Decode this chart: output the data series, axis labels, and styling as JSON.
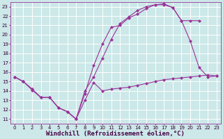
{
  "series": [
    {
      "x": [
        0,
        1,
        2,
        3,
        4,
        5,
        6,
        7,
        8,
        9,
        10,
        11,
        12,
        13,
        14,
        15,
        16,
        17,
        18,
        19,
        20,
        21,
        22,
        23
      ],
      "y": [
        15.5,
        15.0,
        14.1,
        13.3,
        13.3,
        12.2,
        11.8,
        11.0,
        13.0,
        14.9,
        14.0,
        14.2,
        14.3,
        14.4,
        14.6,
        14.8,
        15.0,
        15.2,
        15.3,
        15.4,
        15.5,
        15.6,
        15.7,
        15.6
      ]
    },
    {
      "x": [
        0,
        1,
        2,
        3,
        4,
        5,
        6,
        7,
        8,
        9,
        10,
        11,
        12,
        13,
        14,
        15,
        16,
        17,
        18,
        19,
        20,
        21,
        22,
        23
      ],
      "y": [
        15.5,
        15.0,
        14.2,
        13.3,
        13.3,
        12.2,
        11.8,
        11.0,
        13.7,
        16.7,
        19.0,
        20.8,
        21.0,
        21.8,
        22.2,
        22.8,
        23.2,
        23.3,
        22.9,
        21.5,
        19.3,
        16.5,
        15.5,
        15.6
      ]
    },
    {
      "x": [
        0,
        1,
        2,
        3,
        4,
        5,
        6,
        7,
        8,
        9,
        10,
        11,
        12,
        13,
        14,
        15,
        16,
        17,
        18,
        19,
        20,
        21
      ],
      "y": [
        15.5,
        15.0,
        14.2,
        13.3,
        13.3,
        12.2,
        11.8,
        11.0,
        14.0,
        15.5,
        17.5,
        19.5,
        21.2,
        21.9,
        22.6,
        23.0,
        23.2,
        23.2,
        22.9,
        21.5,
        21.5,
        21.5
      ]
    }
  ],
  "xlabel": "Windchill (Refroidissement éolien,°C)",
  "xlim": [
    -0.5,
    23.5
  ],
  "ylim": [
    10.5,
    23.5
  ],
  "xticks": [
    0,
    1,
    2,
    3,
    4,
    5,
    6,
    7,
    8,
    9,
    10,
    11,
    12,
    13,
    14,
    15,
    16,
    17,
    18,
    19,
    20,
    21,
    22,
    23
  ],
  "yticks": [
    11,
    12,
    13,
    14,
    15,
    16,
    17,
    18,
    19,
    20,
    21,
    22,
    23
  ],
  "bg_color": "#cce8e8",
  "grid_color": "#ffffff",
  "line_color": "#993399",
  "tick_label_fontsize": 5.0,
  "xlabel_fontsize": 6.5
}
